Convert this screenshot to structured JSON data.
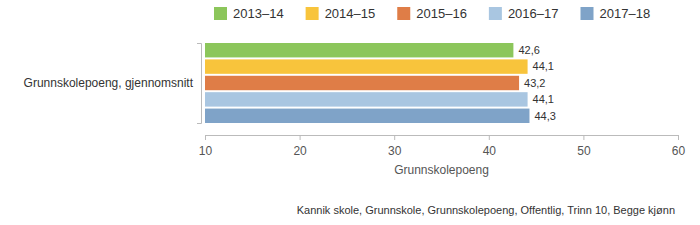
{
  "chart_data": {
    "type": "bar",
    "orientation": "horizontal",
    "categories": [
      "Grunnskolepoeng, gjennomsnitt"
    ],
    "series": [
      {
        "name": "2013–14",
        "color": "#8cc65b",
        "values": [
          42.6
        ],
        "value_labels": [
          "42,6"
        ]
      },
      {
        "name": "2014–15",
        "color": "#f8c43c",
        "values": [
          44.1
        ],
        "value_labels": [
          "44,1"
        ]
      },
      {
        "name": "2015–16",
        "color": "#df7d47",
        "values": [
          43.2
        ],
        "value_labels": [
          "43,2"
        ]
      },
      {
        "name": "2016–17",
        "color": "#a9c6e1",
        "values": [
          44.1
        ],
        "value_labels": [
          "44,1"
        ]
      },
      {
        "name": "2017–18",
        "color": "#7fa3c8",
        "values": [
          44.3
        ],
        "value_labels": [
          "44,3"
        ]
      }
    ],
    "xlim": [
      10,
      60
    ],
    "xticks": [
      10,
      20,
      30,
      40,
      50,
      60
    ],
    "xlabel": "Grunnskolepoeng",
    "subtitle": "Kannik skole, Grunnskole, Grunnskolepoeng, Offentlig, Trinn 10, Begge kjønn",
    "grid": false,
    "data_labels": true,
    "legend": "top"
  }
}
